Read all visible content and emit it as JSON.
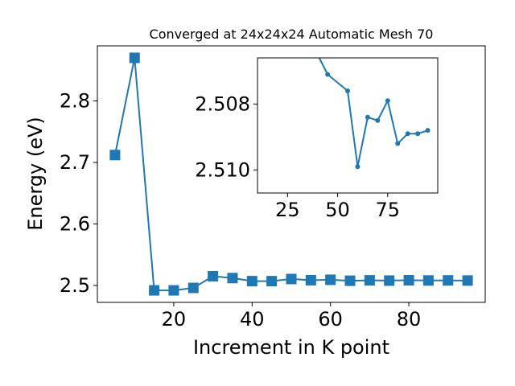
{
  "chart_data": [
    {
      "type": "line",
      "title": "Converged at 24x24x24 Automatic Mesh 70",
      "xlabel": "Increment in K point",
      "ylabel": "Energy (eV)",
      "xlim": [
        0.5,
        99.5
      ],
      "ylim": [
        2.4725,
        2.8895
      ],
      "x_ticks": [
        20,
        40,
        60,
        80
      ],
      "y_ticks": [
        2.5,
        2.6,
        2.7,
        2.8
      ],
      "x_tick_labels": [
        "20",
        "40",
        "60",
        "80"
      ],
      "y_tick_labels": [
        "2.5",
        "2.6",
        "2.7",
        "2.8"
      ],
      "marker": "square",
      "color": "#1f77b4",
      "series": [
        {
          "x": [
            5,
            10,
            15,
            20,
            25,
            30,
            35,
            40,
            45,
            50,
            55,
            60,
            65,
            70,
            75,
            80,
            85,
            90,
            95
          ],
          "y": [
            2.712,
            2.87,
            2.492,
            2.492,
            2.496,
            2.515,
            2.512,
            2.507,
            2.507,
            2.5105,
            2.5085,
            2.5092,
            2.5077,
            2.5083,
            2.5079,
            2.5084,
            2.5081,
            2.5082,
            2.508
          ]
        }
      ]
    },
    {
      "type": "line",
      "inset": true,
      "xlim": [
        10,
        100
      ],
      "ylim": [
        2.5107,
        2.5066
      ],
      "y_inverted": true,
      "x_ticks": [
        25,
        50,
        75
      ],
      "y_ticks": [
        2.508,
        2.51
      ],
      "x_tick_labels": [
        "25",
        "50",
        "75"
      ],
      "y_tick_labels": [
        "2.508",
        "2.510"
      ],
      "marker": "circle",
      "color": "#1f77b4",
      "series": [
        {
          "x": [
            40,
            45,
            55,
            60,
            65,
            70,
            75,
            80,
            85,
            90,
            95
          ],
          "y": [
            2.5065,
            2.5071,
            2.5076,
            2.5099,
            2.5084,
            2.5085,
            2.5079,
            2.5092,
            2.5089,
            2.5089,
            2.5088
          ]
        }
      ]
    }
  ]
}
